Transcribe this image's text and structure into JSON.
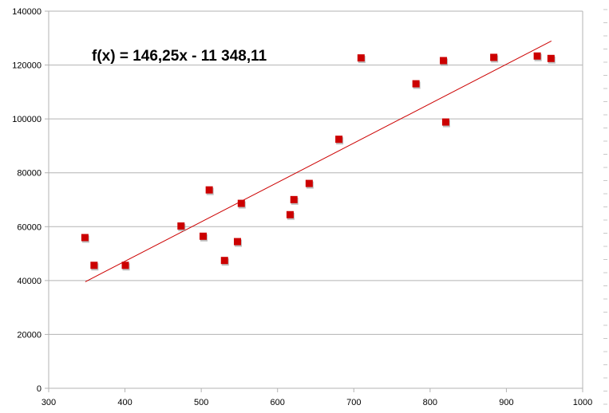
{
  "chart_data": {
    "type": "scatter",
    "title": "",
    "xlabel": "",
    "ylabel": "",
    "xlim": [
      300,
      1000
    ],
    "ylim": [
      0,
      140000
    ],
    "x_ticks": [
      "300",
      "400",
      "500",
      "600",
      "700",
      "800",
      "900",
      "1000"
    ],
    "y_ticks": [
      "0",
      "20000",
      "40000",
      "60000",
      "80000",
      "100000",
      "120000",
      "140000"
    ],
    "grid": "horizontal",
    "points": [
      {
        "x": 348,
        "y": 55800
      },
      {
        "x": 360,
        "y": 45500
      },
      {
        "x": 401,
        "y": 45500
      },
      {
        "x": 474,
        "y": 60100
      },
      {
        "x": 503,
        "y": 56300
      },
      {
        "x": 511,
        "y": 73500
      },
      {
        "x": 531,
        "y": 47300
      },
      {
        "x": 548,
        "y": 54300
      },
      {
        "x": 553,
        "y": 68500
      },
      {
        "x": 617,
        "y": 64300
      },
      {
        "x": 622,
        "y": 69900
      },
      {
        "x": 642,
        "y": 75900
      },
      {
        "x": 681,
        "y": 92300
      },
      {
        "x": 710,
        "y": 122500
      },
      {
        "x": 782,
        "y": 112900
      },
      {
        "x": 818,
        "y": 121500
      },
      {
        "x": 821,
        "y": 98700
      },
      {
        "x": 884,
        "y": 122700
      },
      {
        "x": 941,
        "y": 123200
      },
      {
        "x": 959,
        "y": 122300
      }
    ],
    "trendline": {
      "slope": 146.25,
      "intercept": -11348.11,
      "x_start": 348,
      "x_end": 959
    },
    "equation": "f(x) = 146,25x - 11 348,11",
    "marker_color": "#cc0000",
    "trendline_color": "#cc0000"
  }
}
